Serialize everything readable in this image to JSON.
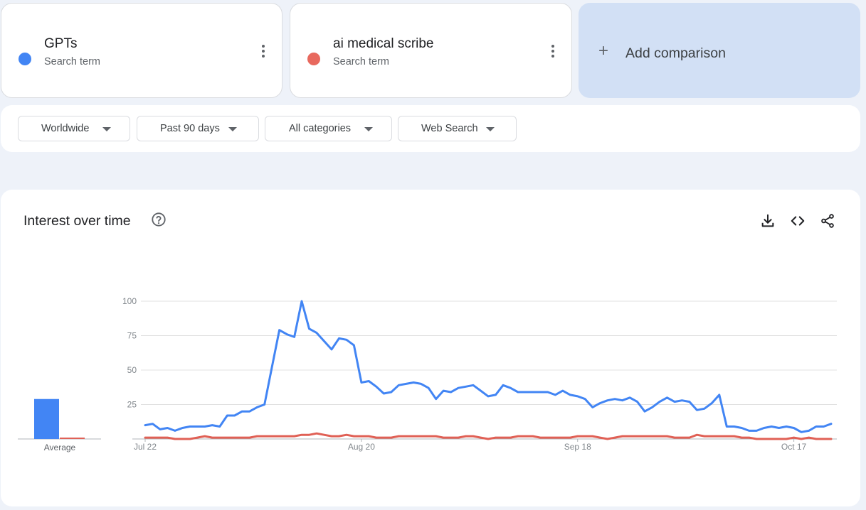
{
  "terms": [
    {
      "name": "GPTs",
      "type": "Search term",
      "color": "#4285f4"
    },
    {
      "name": "ai medical scribe",
      "type": "Search term",
      "color": "#e8695e"
    }
  ],
  "add_comparison": {
    "label": "Add comparison",
    "icon": "plus-icon"
  },
  "filters": {
    "region": "Worldwide",
    "time_range": "Past 90 days",
    "category": "All categories",
    "search_type": "Web Search"
  },
  "panel": {
    "title": "Interest over time",
    "help_icon": "help-circle-icon",
    "tools": [
      "download-icon",
      "embed-code-icon",
      "share-icon"
    ]
  },
  "chart_data": {
    "type": "line",
    "x_start": "Jul 22",
    "x_tick_labels": [
      "Jul 22",
      "Aug 20",
      "Sep 18",
      "Oct 17"
    ],
    "y_ticks": [
      25,
      50,
      75,
      100
    ],
    "ylim": [
      0,
      100
    ],
    "grid": true,
    "average": {
      "label": "Average",
      "values": [
        29,
        1
      ]
    },
    "series": [
      {
        "color": "#4285f4",
        "values": [
          10,
          11,
          7,
          8,
          6,
          8,
          9,
          9,
          9,
          10,
          9,
          17,
          17,
          20,
          20,
          23,
          25,
          52,
          79,
          76,
          74,
          100,
          80,
          77,
          71,
          65,
          73,
          72,
          68,
          41,
          42,
          38,
          33,
          34,
          39,
          40,
          41,
          40,
          37,
          29,
          35,
          34,
          37,
          38,
          39,
          35,
          31,
          32,
          39,
          37,
          34,
          34,
          34,
          34,
          34,
          32,
          35,
          32,
          31,
          29,
          23,
          26,
          28,
          29,
          28,
          30,
          27,
          20,
          23,
          27,
          30,
          27,
          28,
          27,
          21,
          22,
          26,
          32,
          9,
          9,
          8,
          6,
          6,
          8,
          9,
          8,
          9,
          8,
          5,
          6,
          9,
          9,
          11
        ]
      },
      {
        "color": "#e06055",
        "values": [
          1,
          1,
          1,
          1,
          0,
          0,
          0,
          1,
          2,
          1,
          1,
          1,
          1,
          1,
          1,
          2,
          2,
          2,
          2,
          2,
          2,
          3,
          3,
          4,
          3,
          2,
          2,
          3,
          2,
          2,
          2,
          1,
          1,
          1,
          2,
          2,
          2,
          2,
          2,
          2,
          1,
          1,
          1,
          2,
          2,
          1,
          0,
          1,
          1,
          1,
          2,
          2,
          2,
          1,
          1,
          1,
          1,
          1,
          2,
          2,
          2,
          1,
          0,
          1,
          2,
          2,
          2,
          2,
          2,
          2,
          2,
          1,
          1,
          1,
          3,
          2,
          2,
          2,
          2,
          2,
          1,
          1,
          0,
          0,
          0,
          0,
          0,
          1,
          0,
          1,
          0,
          0,
          0
        ]
      }
    ]
  }
}
